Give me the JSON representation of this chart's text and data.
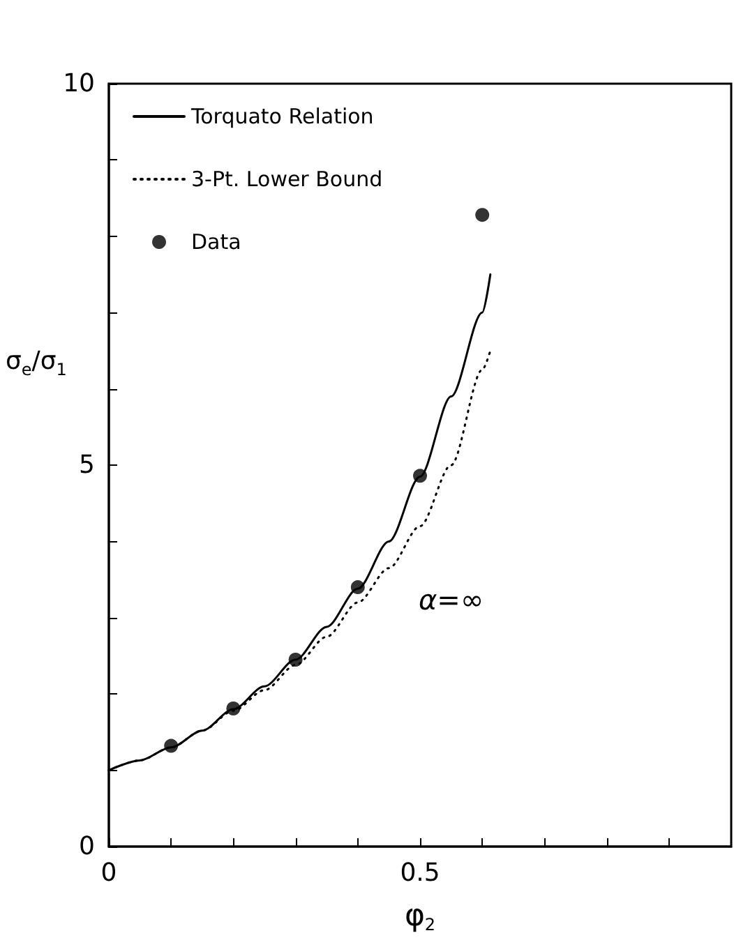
{
  "chart_data": {
    "type": "line",
    "xlabel": "φ$_{2}$",
    "ylabel": "σ$_{e}$/σ$_{1}$",
    "xlim": [
      0,
      1
    ],
    "ylim": [
      0,
      10
    ],
    "xticks": [
      0,
      {
        "value": 0.1,
        "label": null
      },
      {
        "value": 0.2,
        "label": null
      },
      {
        "value": 0.3,
        "label": null
      },
      {
        "value": 0.4,
        "label": null
      },
      0.5,
      {
        "value": 0.6,
        "label": null
      },
      {
        "value": 0.7,
        "label": null
      },
      {
        "value": 0.8,
        "label": null
      },
      {
        "value": 0.9,
        "label": null
      }
    ],
    "yticks": [
      0,
      {
        "value": 1,
        "label": null
      },
      {
        "value": 2,
        "label": null
      },
      {
        "value": 3,
        "label": null
      },
      {
        "value": 4,
        "label": null
      },
      5,
      {
        "value": 6,
        "label": null
      },
      {
        "value": 7,
        "label": null
      },
      {
        "value": 8,
        "label": null
      },
      {
        "value": 9,
        "label": null
      },
      10
    ],
    "legend": "top left",
    "grid": false,
    "annotations": [
      "α=∞"
    ],
    "series": [
      {
        "name": "Torquato Relation",
        "color": "#000000",
        "line_style": "solid",
        "marker": "none",
        "x": [
          0,
          0.05,
          0.1,
          0.15,
          0.2,
          0.25,
          0.3,
          0.35,
          0.4,
          0.45,
          0.5,
          0.55,
          0.6,
          0.613
        ],
        "values": [
          1.0,
          1.13,
          1.3,
          1.52,
          1.8,
          2.1,
          2.45,
          2.88,
          3.38,
          4.0,
          4.85,
          5.9,
          7.0,
          7.5
        ]
      },
      {
        "name": "3-Pt. Lower Bound",
        "color": "#000000",
        "line_style": "dotted",
        "marker": "none",
        "x": [
          0,
          0.05,
          0.1,
          0.15,
          0.2,
          0.25,
          0.3,
          0.35,
          0.4,
          0.45,
          0.5,
          0.55,
          0.6,
          0.613
        ],
        "values": [
          1.0,
          1.13,
          1.3,
          1.52,
          1.78,
          2.05,
          2.38,
          2.75,
          3.2,
          3.65,
          4.2,
          5.0,
          6.25,
          6.5
        ]
      },
      {
        "name": "Data",
        "type": "scatter",
        "color": "#000000",
        "marker": "circle",
        "x": [
          0.1,
          0.2,
          0.3,
          0.4,
          0.5,
          0.6
        ],
        "values": [
          1.32,
          1.81,
          2.45,
          3.4,
          4.86,
          8.28
        ]
      }
    ]
  }
}
